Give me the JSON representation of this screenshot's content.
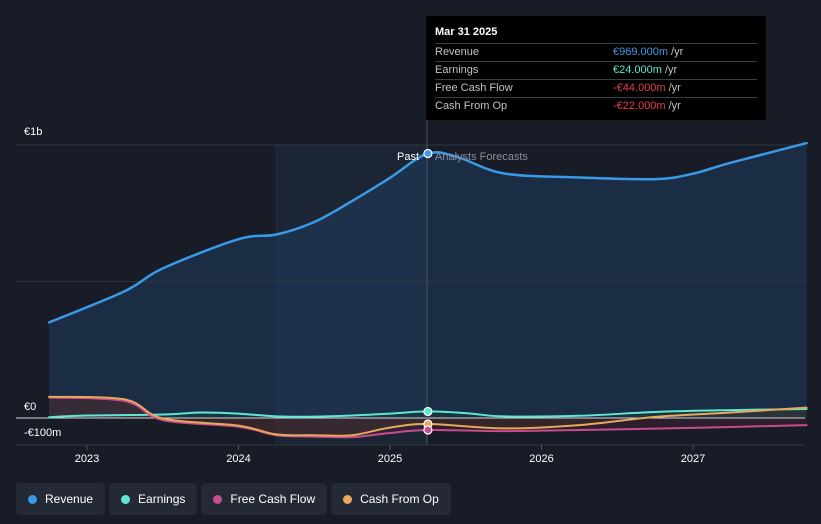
{
  "tooltip": {
    "date": "Mar 31 2025",
    "rows": [
      {
        "label": "Revenue",
        "value": "€969.000m",
        "unit": "/yr",
        "color": "#3a9ae8"
      },
      {
        "label": "Earnings",
        "value": "€24.000m",
        "unit": "/yr",
        "color": "#5ee8d2"
      },
      {
        "label": "Free Cash Flow",
        "value": "-€44.000m",
        "unit": "/yr",
        "color": "#e83d47"
      },
      {
        "label": "Cash From Op",
        "value": "-€22.000m",
        "unit": "/yr",
        "color": "#e83d47"
      }
    ]
  },
  "y_axis": {
    "top": "€1b",
    "zero": "€0",
    "bottom": "-€100m"
  },
  "divider": {
    "past": "Past",
    "forecast": "Analysts Forecasts"
  },
  "legend": [
    {
      "label": "Revenue",
      "color": "#3a9ae8"
    },
    {
      "label": "Earnings",
      "color": "#5ee8d2"
    },
    {
      "label": "Free Cash Flow",
      "color": "#c84c8c"
    },
    {
      "label": "Cash From Op",
      "color": "#e8a85a"
    }
  ],
  "chart_data": {
    "type": "line",
    "x_ticks": [
      "2023",
      "2024",
      "2025",
      "2026",
      "2027"
    ],
    "ylim": [
      -100,
      1000
    ],
    "y_unit": "€m",
    "past_end": "2025.25",
    "series": [
      {
        "name": "Revenue",
        "color": "#3a9ae8",
        "x": [
          2022.75,
          2023.25,
          2023.5,
          2024.0,
          2024.25,
          2024.5,
          2024.75,
          2025.0,
          2025.25,
          2025.45,
          2025.75,
          2026.25,
          2026.75,
          2027.0,
          2027.25,
          2027.75
        ],
        "y": [
          350,
          465,
          548,
          655,
          672,
          718,
          795,
          880,
          969,
          955,
          896,
          881,
          875,
          895,
          935,
          1007
        ]
      },
      {
        "name": "Earnings",
        "color": "#5ee8d2",
        "x": [
          2022.75,
          2023.0,
          2023.5,
          2023.75,
          2024.0,
          2024.25,
          2024.5,
          2024.75,
          2025.0,
          2025.25,
          2025.5,
          2025.75,
          2026.25,
          2026.75,
          2027.25,
          2027.75
        ],
        "y": [
          3,
          9,
          13,
          20,
          16,
          6,
          5,
          9,
          16,
          24,
          18,
          6,
          8,
          22,
          29,
          33
        ]
      },
      {
        "name": "Free Cash Flow",
        "color": "#c84c8c",
        "x": [
          2022.75,
          2023.25,
          2023.5,
          2024.0,
          2024.25,
          2024.5,
          2024.75,
          2025.0,
          2025.25,
          2025.75,
          2026.25,
          2026.75,
          2027.25,
          2027.75
        ],
        "y": [
          75,
          62,
          -8,
          -32,
          -63,
          -68,
          -70,
          -55,
          -44,
          -48,
          -44,
          -39,
          -33,
          -26
        ]
      },
      {
        "name": "Cash From Op",
        "color": "#e8a85a",
        "x": [
          2022.75,
          2023.25,
          2023.5,
          2024.0,
          2024.25,
          2024.5,
          2024.75,
          2025.0,
          2025.25,
          2025.75,
          2026.25,
          2026.75,
          2027.25,
          2027.75
        ],
        "y": [
          78,
          68,
          -2,
          -28,
          -60,
          -63,
          -63,
          -35,
          -22,
          -38,
          -26,
          4,
          20,
          38
        ]
      }
    ]
  }
}
